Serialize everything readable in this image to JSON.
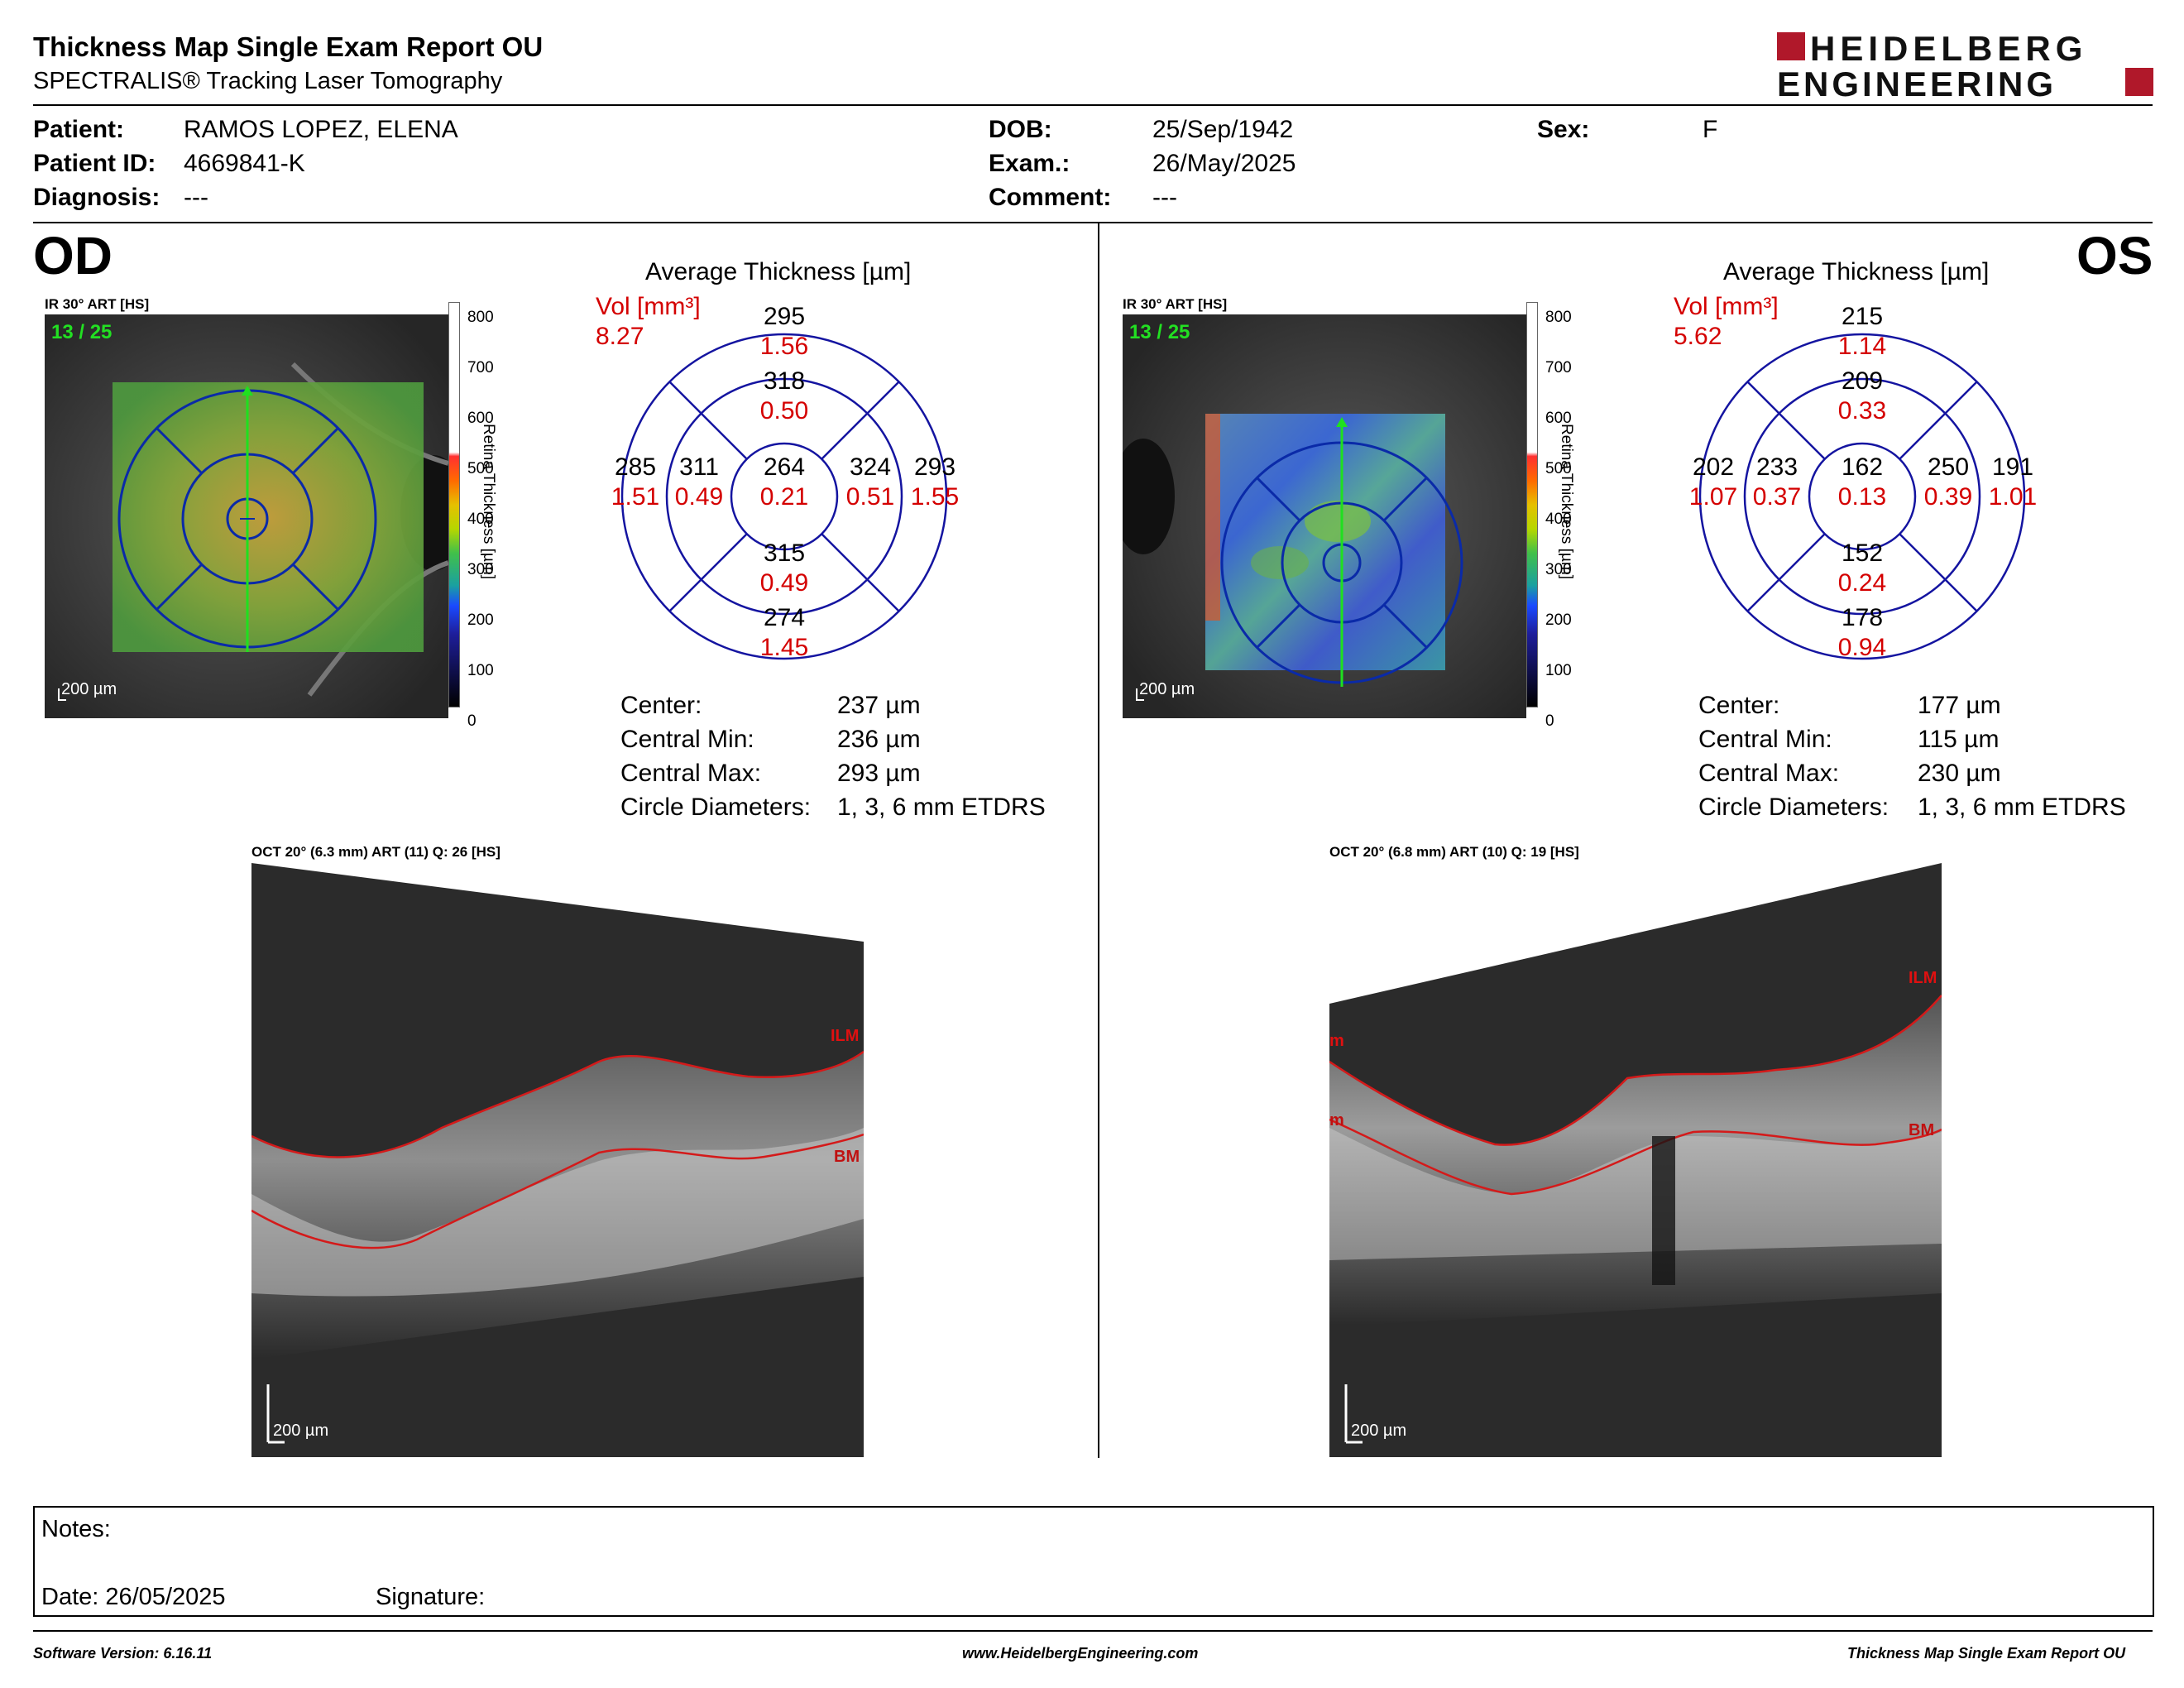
{
  "header": {
    "title": "Thickness Map Single Exam Report OU",
    "subtitle": "SPECTRALIS® Tracking Laser Tomography",
    "logo_line1": "HEIDELBERG",
    "logo_line2": "ENGINEERING",
    "logo_color": "#b0182a"
  },
  "patient": {
    "patient_label": "Patient:",
    "patient_value": "RAMOS LOPEZ, ELENA",
    "id_label": "Patient ID:",
    "id_value": "4669841-K",
    "diagnosis_label": "Diagnosis:",
    "diagnosis_value": "---",
    "dob_label": "DOB:",
    "dob_value": "25/Sep/1942",
    "exam_label": "Exam.:",
    "exam_value": "26/May/2025",
    "comment_label": "Comment:",
    "comment_value": "---",
    "sex_label": "Sex:",
    "sex_value": "F"
  },
  "scale": {
    "ticks": [
      "800",
      "700",
      "600",
      "500",
      "400",
      "300",
      "200",
      "100",
      "0"
    ],
    "label": "Retina Thickness [µm]"
  },
  "od": {
    "eye": "OD",
    "ir_label": "IR 30° ART [HS]",
    "slice": "13 / 25",
    "scalebar": "200 µm",
    "avg_title": "Average Thickness [µm]",
    "vol_label": "Vol [mm³]",
    "vol_total": "8.27",
    "grid": {
      "sup_outer": [
        "295",
        "1.56"
      ],
      "sup_inner": [
        "318",
        "0.50"
      ],
      "temp_outer": [
        "285",
        "1.51"
      ],
      "temp_inner": [
        "311",
        "0.49"
      ],
      "center": [
        "264",
        "0.21"
      ],
      "nasal_inner": [
        "324",
        "0.51"
      ],
      "nasal_outer": [
        "293",
        "1.55"
      ],
      "inf_inner": [
        "315",
        "0.49"
      ],
      "inf_outer": [
        "274",
        "1.45"
      ]
    },
    "stats": [
      {
        "label": "Center:",
        "value": "237 µm"
      },
      {
        "label": "Central Min:",
        "value": "236 µm"
      },
      {
        "label": "Central Max:",
        "value": "293 µm"
      },
      {
        "label": "Circle Diameters:",
        "value": "1, 3, 6 mm ETDRS"
      }
    ],
    "oct_label": "OCT 20° (6.3 mm) ART (11) Q: 26 [HS]",
    "ilm": "ILM",
    "bm": "BM",
    "oct_scalebar": "200 µm"
  },
  "os": {
    "eye": "OS",
    "ir_label": "IR 30° ART [HS]",
    "slice": "13 / 25",
    "scalebar": "200 µm",
    "avg_title": "Average Thickness [µm]",
    "vol_label": "Vol [mm³]",
    "vol_total": "5.62",
    "grid": {
      "sup_outer": [
        "215",
        "1.14"
      ],
      "sup_inner": [
        "209",
        "0.33"
      ],
      "temp_outer": [
        "202",
        "1.07"
      ],
      "temp_inner": [
        "233",
        "0.37"
      ],
      "center": [
        "162",
        "0.13"
      ],
      "nasal_inner": [
        "250",
        "0.39"
      ],
      "nasal_outer": [
        "191",
        "1.01"
      ],
      "inf_inner": [
        "152",
        "0.24"
      ],
      "inf_outer": [
        "178",
        "0.94"
      ]
    },
    "stats": [
      {
        "label": "Center:",
        "value": "177 µm"
      },
      {
        "label": "Central Min:",
        "value": "115 µm"
      },
      {
        "label": "Central Max:",
        "value": "230 µm"
      },
      {
        "label": "Circle Diameters:",
        "value": "1, 3, 6 mm ETDRS"
      }
    ],
    "oct_label": "OCT 20° (6.8 mm) ART (10) Q: 19 [HS]",
    "ilm": "ILM",
    "bm": "BM",
    "ilm_left": "m",
    "bm_left": "m",
    "oct_scalebar": "200 µm"
  },
  "notes": {
    "notes_label": "Notes:",
    "date_label": "Date: 26/05/2025",
    "signature_label": "Signature:"
  },
  "footer": {
    "software": "Software Version: 6.16.11",
    "website": "www.HeidelbergEngineering.com",
    "report": "Thickness Map Single Exam Report OU"
  }
}
